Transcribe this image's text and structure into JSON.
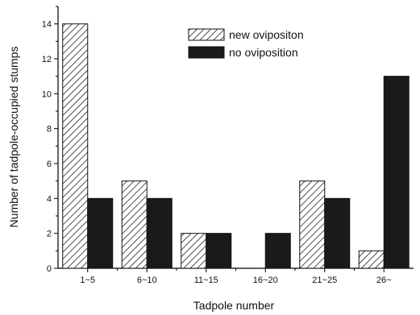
{
  "chart_data": {
    "type": "bar",
    "title": "",
    "xlabel": "Tadpole number",
    "ylabel": "Number of tadpole-occupied stumps",
    "categories": [
      "1~5",
      "6~10",
      "11~15",
      "16~20",
      "21~25",
      "26~"
    ],
    "ylim": [
      0,
      15
    ],
    "yticks": [
      0,
      2,
      4,
      6,
      8,
      10,
      12,
      14
    ],
    "grid": false,
    "legend_position": "top-center",
    "series": [
      {
        "name": "new ovipositon",
        "values": [
          14,
          5,
          2,
          0,
          5,
          1
        ],
        "fill": "hatched"
      },
      {
        "name": "no oviposition",
        "values": [
          4,
          4,
          2,
          2,
          4,
          11
        ],
        "fill": "#1a1a1a"
      }
    ]
  }
}
